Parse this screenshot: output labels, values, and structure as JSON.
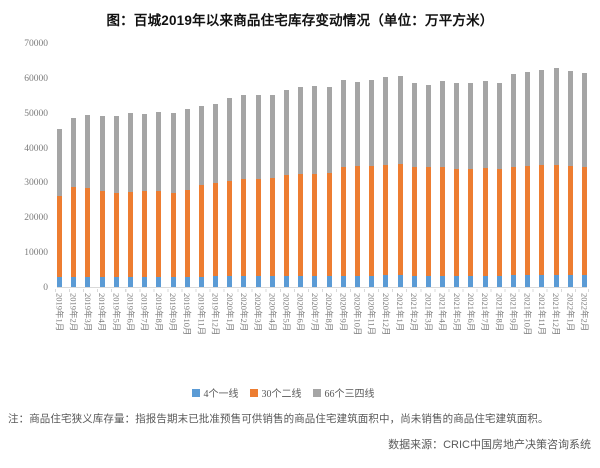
{
  "title": "图：百城2019年以来商品住宅库存变动情况（单位：万平方米）",
  "chart_data": {
    "type": "bar",
    "stacked": true,
    "unit": "万平方米",
    "grid": false,
    "legend_position": "bottom",
    "ylim": [
      0,
      70000
    ],
    "yticks": [
      0,
      10000,
      20000,
      30000,
      40000,
      50000,
      60000,
      70000
    ],
    "categories": [
      "2019年1月",
      "2019年2月",
      "2019年3月",
      "2019年4月",
      "2019年5月",
      "2019年6月",
      "2019年7月",
      "2019年8月",
      "2019年9月",
      "2019年10月",
      "2019年11月",
      "2019年12月",
      "2020年1月",
      "2020年2月",
      "2020年3月",
      "2020年4月",
      "2020年5月",
      "2020年6月",
      "2020年7月",
      "2020年8月",
      "2020年9月",
      "2020年10月",
      "2020年11月",
      "2020年12月",
      "2021年1月",
      "2021年2月",
      "2021年3月",
      "2021年4月",
      "2021年5月",
      "2021年6月",
      "2021年7月",
      "2021年8月",
      "2021年9月",
      "2021年10月",
      "2021年11月",
      "2021年12月",
      "2022年1月",
      "2022年2月"
    ],
    "series": [
      {
        "name": "4个一线",
        "color": "#5B9BD5",
        "values": [
          2800,
          2900,
          2900,
          2900,
          2900,
          3000,
          3000,
          3000,
          3000,
          3000,
          3000,
          3100,
          3100,
          3100,
          3100,
          3100,
          3200,
          3200,
          3200,
          3300,
          3300,
          3300,
          3300,
          3400,
          3400,
          3300,
          3300,
          3300,
          3300,
          3300,
          3300,
          3300,
          3400,
          3400,
          3400,
          3400,
          3400,
          3400
        ]
      },
      {
        "name": "30个二线",
        "color": "#ED7D31",
        "values": [
          23400,
          25800,
          25400,
          24600,
          24100,
          24300,
          24500,
          24500,
          24100,
          24800,
          26200,
          26800,
          27300,
          28000,
          28000,
          28200,
          28900,
          29100,
          29100,
          29300,
          31200,
          31500,
          31500,
          31700,
          31800,
          31000,
          31200,
          31200,
          30700,
          30700,
          30900,
          30700,
          31100,
          31400,
          31600,
          31600,
          31400,
          31100
        ]
      },
      {
        "name": "66个三四线",
        "color": "#A5A5A5",
        "values": [
          19100,
          19700,
          21000,
          21600,
          22000,
          22500,
          22200,
          22800,
          22900,
          23200,
          22700,
          22500,
          23700,
          23900,
          23900,
          23900,
          24400,
          25100,
          25300,
          24800,
          24800,
          24100,
          24700,
          25200,
          25400,
          24100,
          23600,
          24600,
          24400,
          24600,
          24900,
          24400,
          26500,
          26800,
          27200,
          27700,
          27100,
          27000
        ]
      }
    ]
  },
  "note": "注：商品住宅狭义库存量：指报告期末已批准预售可供销售的商品住宅建筑面积中，尚未销售的商品住宅建筑面积。",
  "source": "数据来源：CRIC中国房地产决策咨询系统",
  "colors": {
    "axis_line": "#d9d9d9",
    "axis_text": "#7c7c7c",
    "note_text": "#595959"
  }
}
